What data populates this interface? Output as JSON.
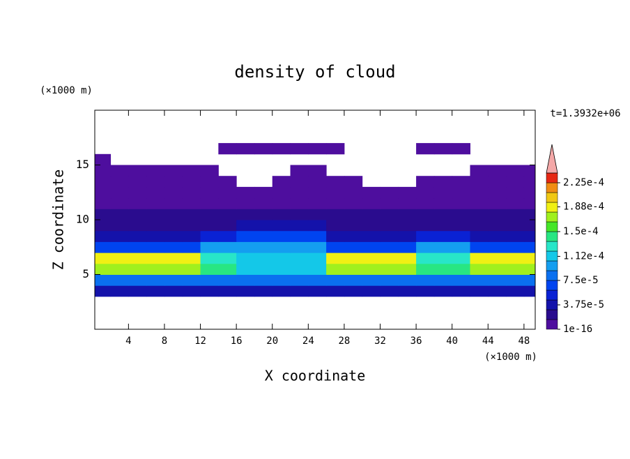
{
  "chart_data": {
    "type": "contour",
    "title": "density of cloud",
    "x_label": "X coordinate",
    "y_label": "Z coordinate",
    "x_unit": "(×1000 m)",
    "y_unit": "(×1000 m)",
    "time_label": "t=1.3932e+06",
    "xlim": [
      0.25,
      49.25
    ],
    "ylim": [
      0,
      20
    ],
    "xticks": [
      4,
      8,
      12,
      16,
      20,
      24,
      28,
      32,
      36,
      40,
      44,
      48
    ],
    "yticks": [
      5,
      10,
      15
    ],
    "x": [
      1,
      3,
      5,
      7,
      9,
      11,
      13,
      15,
      17,
      19,
      21,
      23,
      25,
      27,
      29,
      31,
      33,
      35,
      37,
      39,
      41,
      43,
      45,
      47,
      49
    ],
    "y": [
      3.5,
      4.5,
      5.5,
      6.5,
      7.5,
      8.5,
      9.5,
      10.5,
      11.5,
      12.5,
      13.5,
      14.5,
      15.5,
      16.5
    ],
    "z": [
      [
        3.5e-05,
        3.5e-05,
        3.5e-05,
        3.5e-05,
        3.5e-05,
        3.5e-05,
        3.5e-05,
        3.5e-05,
        3.5e-05,
        3.5e-05,
        3.5e-05,
        3.5e-05,
        3.5e-05,
        3.5e-05,
        3.5e-05,
        3.5e-05,
        3.5e-05,
        3.5e-05,
        3.5e-05,
        3.5e-05,
        3.5e-05,
        3.5e-05,
        3.5e-05,
        3.5e-05,
        3.5e-05
      ],
      [
        8e-05,
        8e-05,
        8e-05,
        8e-05,
        8e-05,
        8e-05,
        8e-05,
        8e-05,
        8e-05,
        8e-05,
        8e-05,
        8e-05,
        8e-05,
        8e-05,
        8e-05,
        8e-05,
        8e-05,
        8e-05,
        8e-05,
        8e-05,
        8e-05,
        8e-05,
        8e-05,
        8e-05,
        8e-05
      ],
      [
        0.00017,
        0.00017,
        0.00017,
        0.00017,
        0.00017,
        0.00017,
        0.00014,
        0.00014,
        0.00011,
        0.00011,
        0.00011,
        0.00011,
        0.00011,
        0.00017,
        0.00017,
        0.00017,
        0.00017,
        0.00017,
        0.00014,
        0.00014,
        0.00014,
        0.00017,
        0.00017,
        0.00017,
        0.00017
      ],
      [
        0.000185,
        0.000185,
        0.000185,
        0.000185,
        0.000185,
        0.000185,
        0.00013,
        0.00013,
        0.000115,
        0.000115,
        0.000115,
        0.000115,
        0.000115,
        0.000185,
        0.000185,
        0.000185,
        0.000185,
        0.000185,
        0.00013,
        0.00013,
        0.00013,
        0.000185,
        0.000185,
        0.000185,
        0.000185
      ],
      [
        6.5e-05,
        6.5e-05,
        6.5e-05,
        6.5e-05,
        6.5e-05,
        6.5e-05,
        9e-05,
        9e-05,
        0.0001,
        0.0001,
        0.0001,
        0.0001,
        0.0001,
        6.5e-05,
        6.5e-05,
        6.5e-05,
        6.5e-05,
        6.5e-05,
        9e-05,
        9e-05,
        9e-05,
        6.5e-05,
        6.5e-05,
        6.5e-05,
        6.5e-05
      ],
      [
        3.5e-05,
        3.5e-05,
        3.5e-05,
        3.5e-05,
        3.5e-05,
        3.5e-05,
        5e-05,
        5e-05,
        7e-05,
        7e-05,
        7e-05,
        7e-05,
        7e-05,
        3.5e-05,
        3.5e-05,
        3.5e-05,
        3.5e-05,
        3.5e-05,
        5e-05,
        5e-05,
        5e-05,
        3.5e-05,
        3.5e-05,
        3.5e-05,
        3.5e-05
      ],
      [
        2.5e-05,
        2.5e-05,
        2.5e-05,
        2.5e-05,
        2.5e-05,
        2.5e-05,
        2.5e-05,
        2.5e-05,
        4e-05,
        4e-05,
        4e-05,
        4e-05,
        4e-05,
        2.5e-05,
        2.5e-05,
        2.5e-05,
        2.5e-05,
        2.5e-05,
        2.5e-05,
        2.5e-05,
        2.5e-05,
        2.5e-05,
        2.5e-05,
        2.5e-05,
        2.5e-05
      ],
      [
        2e-05,
        2e-05,
        2e-05,
        2e-05,
        2e-05,
        2e-05,
        2e-05,
        2e-05,
        2e-05,
        2e-05,
        2e-05,
        2e-05,
        2e-05,
        2e-05,
        2e-05,
        2e-05,
        2e-05,
        2e-05,
        2e-05,
        2e-05,
        2e-05,
        2e-05,
        2e-05,
        2e-05,
        2e-05
      ],
      [
        8e-06,
        8e-06,
        8e-06,
        8e-06,
        8e-06,
        8e-06,
        8e-06,
        8e-06,
        8e-06,
        8e-06,
        8e-06,
        8e-06,
        8e-06,
        8e-06,
        8e-06,
        8e-06,
        8e-06,
        8e-06,
        8e-06,
        8e-06,
        8e-06,
        8e-06,
        8e-06,
        8e-06,
        8e-06
      ],
      [
        2e-06,
        2e-06,
        2e-06,
        2e-06,
        2e-06,
        2e-06,
        2e-06,
        2e-06,
        2e-06,
        2e-06,
        2e-06,
        2e-06,
        2e-06,
        2e-06,
        2e-06,
        2e-06,
        2e-06,
        2e-06,
        2e-06,
        2e-06,
        2e-06,
        2e-06,
        2e-06,
        2e-06,
        2e-06
      ],
      [
        1e-06,
        1e-06,
        1e-06,
        1e-06,
        1e-06,
        1e-06,
        1e-06,
        1e-06,
        null,
        null,
        1e-06,
        1e-06,
        1e-06,
        1e-06,
        1e-06,
        null,
        null,
        null,
        1e-06,
        1e-06,
        1e-06,
        1e-06,
        1e-06,
        1e-06,
        1e-06
      ],
      [
        1e-06,
        1e-06,
        1e-06,
        1e-06,
        1e-06,
        1e-06,
        1e-06,
        null,
        null,
        null,
        null,
        1e-06,
        1e-06,
        null,
        null,
        null,
        null,
        null,
        null,
        null,
        null,
        1e-06,
        1e-06,
        1e-06,
        1e-06
      ],
      [
        1e-06,
        null,
        null,
        null,
        null,
        null,
        null,
        null,
        null,
        null,
        null,
        null,
        null,
        null,
        null,
        null,
        null,
        null,
        null,
        null,
        null,
        null,
        null,
        null,
        null
      ],
      [
        null,
        null,
        null,
        null,
        null,
        null,
        null,
        1e-06,
        1e-06,
        1e-06,
        1e-06,
        1e-06,
        1e-06,
        1e-06,
        null,
        null,
        null,
        null,
        1e-06,
        1e-06,
        1e-06,
        null,
        null,
        null,
        null
      ]
    ],
    "levels": [
      1e-16,
      1.5e-05,
      3e-05,
      4.5e-05,
      6e-05,
      7.5e-05,
      9e-05,
      0.000105,
      0.00012,
      0.000135,
      0.00015,
      0.000165,
      0.00018,
      0.000195,
      0.00021,
      0.000225,
      0.00024
    ],
    "colors": [
      "#4e0e9e",
      "#2a0c8e",
      "#1412aa",
      "#0a22d4",
      "#0044f0",
      "#0a70f0",
      "#149ef0",
      "#14c8e8",
      "#28e6c8",
      "#28e682",
      "#46e628",
      "#a0f01e",
      "#f0f014",
      "#f0c814",
      "#f08c14",
      "#e62814"
    ],
    "over_color": "#f4a8a8",
    "colorbar_ticks": [
      1e-16,
      {
        "value": 3.75e-05,
        "label": "3.75e-5"
      },
      {
        "value": 7.5e-05,
        "label": "7.5e-5"
      },
      {
        "value": 0.000112,
        "label": "1.12e-4"
      },
      {
        "value": 0.00015,
        "label": "1.5e-4"
      },
      {
        "value": 0.000188,
        "label": "1.88e-4"
      },
      {
        "value": 0.000225,
        "label": "2.25e-4"
      }
    ]
  }
}
